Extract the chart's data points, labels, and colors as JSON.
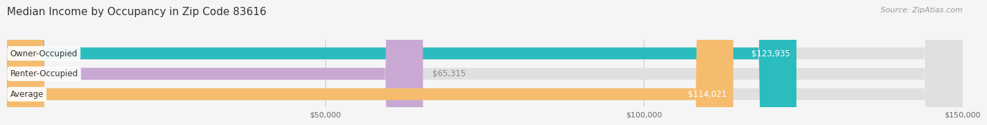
{
  "title": "Median Income by Occupancy in Zip Code 83616",
  "source": "Source: ZipAtlas.com",
  "categories": [
    "Owner-Occupied",
    "Renter-Occupied",
    "Average"
  ],
  "values": [
    123935,
    65315,
    114021
  ],
  "bar_colors": [
    "#2bbcbe",
    "#c9a8d4",
    "#f5bc6e"
  ],
  "bar_labels": [
    "$123,935",
    "$65,315",
    "$114,021"
  ],
  "xlim": [
    0,
    150000
  ],
  "xticks": [
    50000,
    100000,
    150000
  ],
  "xtick_labels": [
    "$50,000",
    "$100,000",
    "$150,000"
  ],
  "background_color": "#f5f5f5",
  "bar_bg_color": "#e0e0e0",
  "label_inside_color": "#ffffff",
  "label_outside_color": "#888888",
  "title_fontsize": 11,
  "source_fontsize": 8,
  "bar_height": 0.58,
  "bar_label_fontsize": 8.5,
  "category_fontsize": 8.5
}
